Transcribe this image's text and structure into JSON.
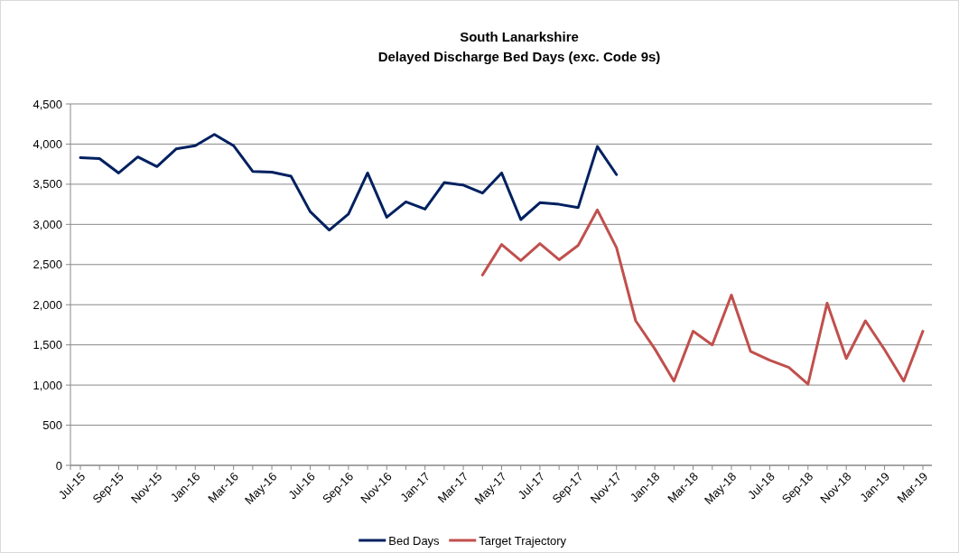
{
  "chart_data": {
    "type": "line",
    "title": "South Lanarkshire",
    "subtitle": "Delayed Discharge Bed Days (exc. Code 9s)",
    "categories": [
      "Jul-15",
      null,
      "Sep-15",
      null,
      "Nov-15",
      null,
      "Jan-16",
      null,
      "Mar-16",
      null,
      "May-16",
      null,
      "Jul-16",
      null,
      "Sep-16",
      null,
      "Nov-16",
      null,
      "Jan-17",
      null,
      "Mar-17",
      null,
      "May-17",
      null,
      "Jul-17",
      null,
      "Sep-17",
      null,
      "Nov-17",
      null,
      "Jan-18",
      null,
      "Mar-18",
      null,
      "May-18",
      null,
      "Jul-18",
      null,
      "Sep-18",
      null,
      "Nov-18",
      null,
      "Jan-19",
      null,
      "Mar-19"
    ],
    "series": [
      {
        "name": "Bed Days",
        "color": "#002060",
        "values": [
          3830,
          3820,
          3640,
          3840,
          3720,
          3940,
          3980,
          4120,
          3980,
          3660,
          3650,
          3600,
          3160,
          2930,
          3130,
          3640,
          3090,
          3280,
          3190,
          3520,
          3490,
          3390,
          3640,
          3060,
          3270,
          3250,
          3210,
          3970,
          3620,
          null,
          null,
          null,
          null,
          null,
          null,
          null,
          null,
          null,
          null,
          null,
          null,
          null,
          null,
          null,
          null
        ]
      },
      {
        "name": "Target Trajectory",
        "color": "#c0504d",
        "values": [
          null,
          null,
          null,
          null,
          null,
          null,
          null,
          null,
          null,
          null,
          null,
          null,
          null,
          null,
          null,
          null,
          null,
          null,
          null,
          null,
          null,
          2370,
          2750,
          2550,
          2760,
          2560,
          2740,
          3180,
          2710,
          1800,
          1450,
          1050,
          1670,
          1500,
          2120,
          1420,
          1310,
          1220,
          1010,
          2020,
          1330,
          1800,
          1440,
          1050,
          1670
        ]
      }
    ],
    "ylim": [
      0,
      4500
    ],
    "yticks": [
      {
        "value": 0,
        "label": "0"
      },
      {
        "value": 500,
        "label": "500"
      },
      {
        "value": 1000,
        "label": "1,000"
      },
      {
        "value": 1500,
        "label": "1,500"
      },
      {
        "value": 2000,
        "label": "2,000"
      },
      {
        "value": 2500,
        "label": "2,500"
      },
      {
        "value": 3000,
        "label": "3,000"
      },
      {
        "value": 3500,
        "label": "3,500"
      },
      {
        "value": 4000,
        "label": "4,000"
      },
      {
        "value": 4500,
        "label": "4,500"
      }
    ],
    "grid": "y",
    "legend": "bottom"
  }
}
